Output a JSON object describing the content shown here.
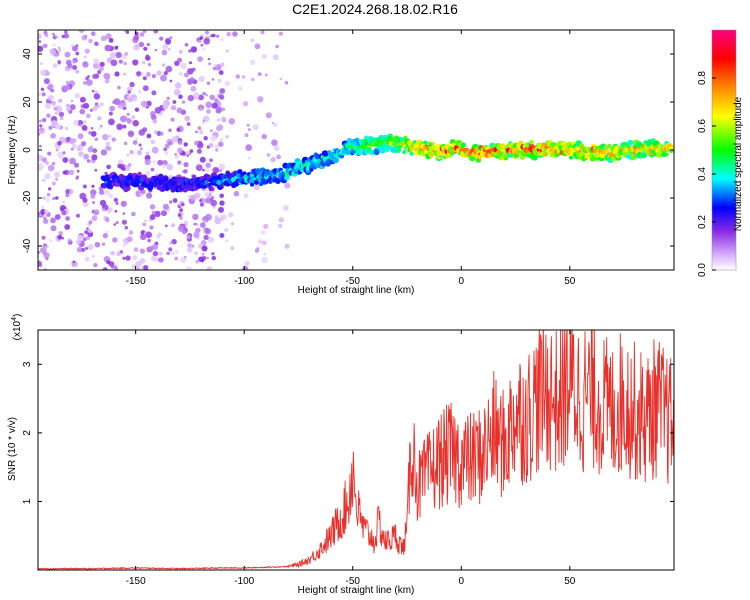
{
  "title": "C2E1.2024.268.18.02.R16",
  "chart_data": [
    {
      "type": "heatmap",
      "xlabel": "Height of straight line (km)",
      "ylabel": "Frequency (Hz)",
      "xlim": [
        -195,
        98
      ],
      "ylim": [
        -50,
        50
      ],
      "xticks": [
        -150,
        -100,
        -50,
        0,
        50
      ],
      "yticks": [
        -40,
        -20,
        0,
        20,
        40
      ],
      "colorbar": {
        "label": "Normalized spectral amplitude",
        "range": [
          0.0,
          1.0
        ],
        "ticks": [
          "0.0",
          "0.2",
          "0.4",
          "0.6",
          "0.8"
        ],
        "tick_values": [
          0.0,
          0.2,
          0.4,
          0.6,
          0.8
        ],
        "colors": [
          "#ffffff",
          "#d9b3ff",
          "#8a2be2",
          "#0000ff",
          "#00ffff",
          "#00ff00",
          "#ffff00",
          "#ff8800",
          "#ff0000",
          "#ff0080"
        ]
      },
      "ridge": {
        "x": [
          -160,
          -150,
          -140,
          -130,
          -120,
          -110,
          -100,
          -90,
          -80,
          -70,
          -60,
          -50,
          -40,
          -30,
          -20,
          -10,
          0,
          10,
          20,
          30,
          40,
          50,
          60,
          70,
          80,
          90,
          95
        ],
        "y": [
          -13,
          -13,
          -14,
          -14,
          -14,
          -13,
          -12,
          -11,
          -9,
          -6,
          -3,
          2,
          2,
          3,
          1,
          0,
          0,
          -1,
          0,
          0,
          0,
          0,
          -1,
          -1,
          0,
          1,
          0
        ],
        "peak_amplitude": [
          0.3,
          0.3,
          0.3,
          0.3,
          0.3,
          0.35,
          0.4,
          0.4,
          0.45,
          0.45,
          0.45,
          0.5,
          0.6,
          0.65,
          0.8,
          0.85,
          0.85,
          0.85,
          0.85,
          0.85,
          0.85,
          0.8,
          0.8,
          0.75,
          0.75,
          0.75,
          0.75
        ]
      }
    },
    {
      "type": "line",
      "xlabel": "Height of straight line (km)",
      "ylabel": "SNR (10 * v/v)",
      "exponent_label": "(x10",
      "exponent_power": "4",
      "exponent_close": ")",
      "xlim": [
        -195,
        98
      ],
      "ylim": [
        0,
        3.5
      ],
      "xticks": [
        -150,
        -100,
        -50,
        0,
        50
      ],
      "yticks": [
        1,
        2,
        3
      ],
      "series": [
        {
          "color": "#e8302a",
          "x": [
            -195,
            -170,
            -150,
            -130,
            -110,
            -100,
            -90,
            -80,
            -75,
            -70,
            -65,
            -60,
            -55,
            -52,
            -50,
            -48,
            -45,
            -42,
            -40,
            -38,
            -35,
            -30,
            -27,
            -25,
            -23,
            -20,
            -15,
            -10,
            -5,
            0,
            5,
            10,
            15,
            20,
            25,
            30,
            35,
            40,
            45,
            50,
            55,
            60,
            65,
            70,
            75,
            80,
            85,
            90,
            95,
            98
          ],
          "y": [
            0.02,
            0.02,
            0.03,
            0.02,
            0.03,
            0.03,
            0.04,
            0.05,
            0.08,
            0.15,
            0.3,
            0.5,
            0.8,
            1.0,
            1.5,
            0.9,
            0.6,
            0.5,
            0.4,
            0.7,
            0.4,
            0.5,
            0.3,
            0.6,
            1.9,
            1.2,
            1.4,
            1.6,
            1.7,
            1.6,
            1.6,
            1.7,
            2.0,
            1.8,
            2.3,
            2.2,
            2.5,
            2.6,
            2.4,
            2.8,
            2.5,
            2.6,
            2.4,
            2.3,
            2.5,
            2.3,
            2.2,
            2.4,
            2.2,
            2.1
          ]
        }
      ]
    }
  ]
}
